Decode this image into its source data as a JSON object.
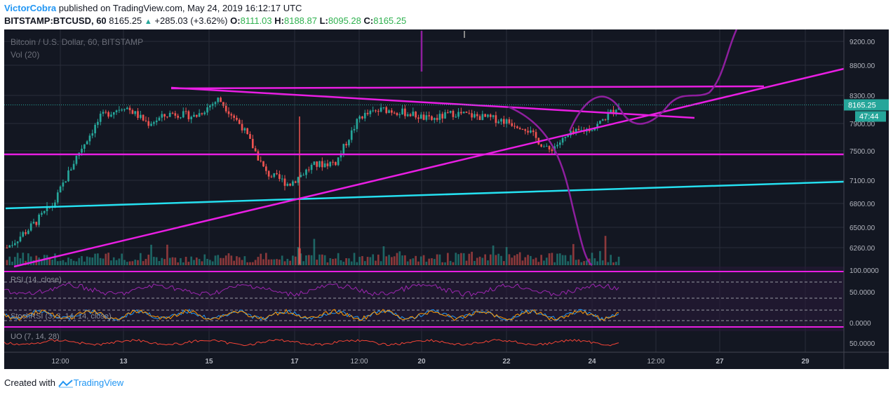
{
  "header": {
    "author": "VictorCobra",
    "published_text": "published on TradingView.com, May 24, 2019 16:12:17 UTC",
    "symbol": "BITSTAMP:BTCUSD, 60",
    "last": "8165.25",
    "change": "+285.03 (+3.62%)",
    "o_label": "O:",
    "o_value": "8111.03",
    "h_label": "H:",
    "h_value": "8188.87",
    "l_label": "L:",
    "l_value": "8095.28",
    "c_label": "C:",
    "c_value": "8165.25"
  },
  "chart_data": {
    "type": "line",
    "title": "Bitcoin / U.S. Dollar, 60, BITSTAMP",
    "volume_label": "Vol (20)",
    "y_ticks": [
      "9200.00",
      "8800.00",
      "8300.00",
      "7900.00",
      "7500.00",
      "7100.00",
      "6800.00",
      "6500.00",
      "6260.00"
    ],
    "y_tick_values": [
      9200,
      8800,
      8300,
      7900,
      7500,
      7100,
      6800,
      6500,
      6260
    ],
    "x_ticks": [
      "12:00",
      "13",
      "15",
      "17",
      "12:00",
      "20",
      "22",
      "24",
      "12:00",
      "27",
      "29"
    ],
    "last_price_label": "8165.25",
    "countdown_label": "47:44",
    "price_series": {
      "name": "BTCUSD",
      "x": [
        "May 12 06:00",
        "May 12 12:00",
        "May 13 00:00",
        "May 13 12:00",
        "May 14 00:00",
        "May 14 12:00",
        "May 15 00:00",
        "May 15 12:00",
        "May 16 00:00",
        "May 16 12:00",
        "May 17 00:00",
        "May 17 06:00",
        "May 17 12:00",
        "May 18 00:00",
        "May 18 12:00",
        "May 19 00:00",
        "May 19 12:00",
        "May 20 00:00",
        "May 20 12:00",
        "May 21 00:00",
        "May 21 12:00",
        "May 22 00:00",
        "May 22 12:00",
        "May 23 00:00",
        "May 23 12:00",
        "May 24 00:00",
        "May 24 16:00"
      ],
      "values": [
        6260,
        6500,
        6800,
        7450,
        8000,
        8150,
        7900,
        8050,
        8000,
        8250,
        7850,
        7200,
        7050,
        7300,
        7350,
        8000,
        8100,
        8050,
        7950,
        8050,
        8000,
        7950,
        7850,
        7500,
        7750,
        7850,
        8165.25
      ]
    },
    "oscillators": [
      {
        "name": "RSI (14, close)",
        "levels": [
          "100.0000",
          "50.0000"
        ]
      },
      {
        "name": "StochRSI (3, 3, 14, 14, close)",
        "levels": [
          "0.0000"
        ]
      },
      {
        "name": "UO (7, 14, 28)",
        "levels": [
          "50.0000"
        ]
      }
    ]
  },
  "footer": {
    "created_with": "Created with",
    "brand": "TradingView"
  },
  "colors": {
    "up_candle": "#26a69a",
    "down_candle": "#ef5350",
    "trendline": "#e91ee3",
    "support_line": "#25e0f0",
    "projection": "#8e1f9e",
    "last_price": "#26a69a"
  }
}
